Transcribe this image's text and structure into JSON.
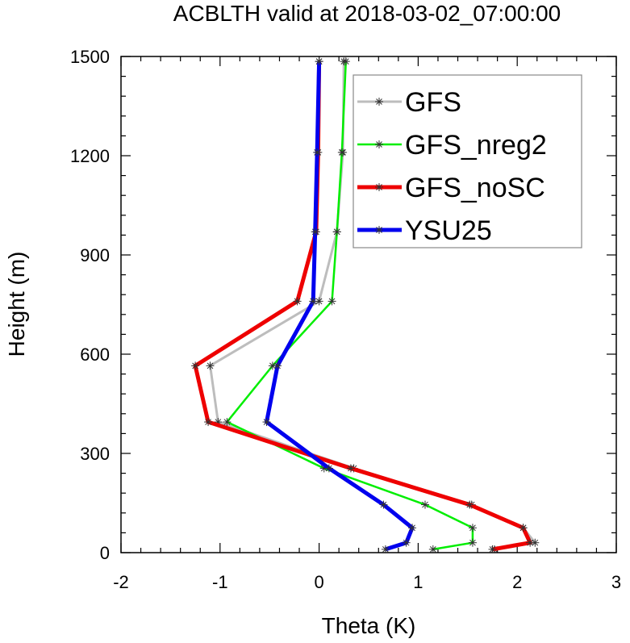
{
  "chart_data": {
    "type": "line",
    "title": "ACBLTH valid at 2018-03-02_07:00:00",
    "xlabel": "Theta (K)",
    "ylabel": "Height (m)",
    "xlim": [
      -2,
      3
    ],
    "ylim": [
      0,
      1500
    ],
    "xticks": [
      -2,
      -1,
      0,
      1,
      2,
      3
    ],
    "yticks": [
      0,
      300,
      600,
      900,
      1200,
      1500
    ],
    "grid": false,
    "legend_position": "top-right",
    "series": [
      {
        "name": "GFS",
        "color": "#bdbdbd",
        "points": [
          [
            1.77,
            10
          ],
          [
            2.18,
            30
          ],
          [
            2.06,
            75
          ],
          [
            1.54,
            145
          ],
          [
            0.35,
            255
          ],
          [
            -1.02,
            395
          ],
          [
            -1.1,
            565
          ],
          [
            0.0,
            760
          ],
          [
            0.18,
            970
          ],
          [
            0.24,
            1210
          ],
          [
            0.25,
            1485
          ]
        ]
      },
      {
        "name": "GFS_nreg2",
        "color": "#00ee00",
        "points": [
          [
            1.15,
            10
          ],
          [
            1.55,
            30
          ],
          [
            1.55,
            75
          ],
          [
            1.07,
            145
          ],
          [
            0.05,
            255
          ],
          [
            -0.93,
            395
          ],
          [
            -0.47,
            565
          ],
          [
            0.13,
            760
          ],
          [
            0.18,
            970
          ],
          [
            0.23,
            1210
          ],
          [
            0.27,
            1485
          ]
        ]
      },
      {
        "name": "GFS_noSC",
        "color": "#ee0000",
        "points": [
          [
            1.75,
            10
          ],
          [
            2.13,
            30
          ],
          [
            2.06,
            75
          ],
          [
            1.52,
            145
          ],
          [
            0.32,
            255
          ],
          [
            -1.12,
            395
          ],
          [
            -1.25,
            565
          ],
          [
            -0.22,
            760
          ],
          [
            -0.03,
            970
          ],
          [
            -0.01,
            1210
          ],
          [
            0.0,
            1485
          ]
        ]
      },
      {
        "name": "YSU25",
        "color": "#0000ee",
        "points": [
          [
            0.67,
            10
          ],
          [
            0.88,
            30
          ],
          [
            0.94,
            75
          ],
          [
            0.65,
            145
          ],
          [
            0.1,
            255
          ],
          [
            -0.53,
            395
          ],
          [
            -0.42,
            565
          ],
          [
            -0.06,
            760
          ],
          [
            -0.04,
            970
          ],
          [
            -0.02,
            1210
          ],
          [
            0.0,
            1485
          ]
        ]
      }
    ]
  }
}
